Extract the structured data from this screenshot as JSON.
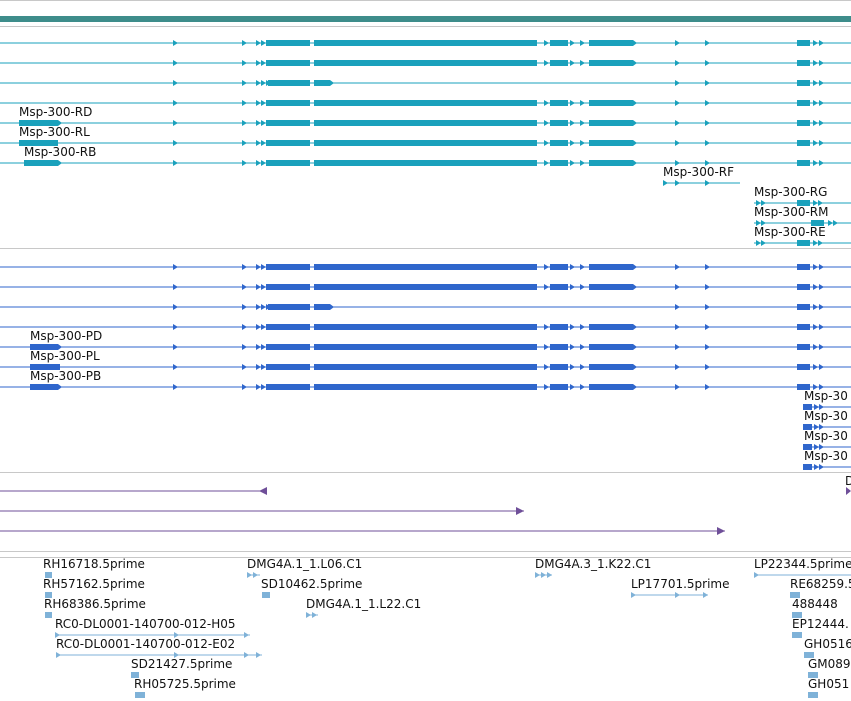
{
  "colors": {
    "rna_track": "#1aa1bc",
    "protein_track": "#2f66cc",
    "gene_span": "#6f4f99",
    "est_track": "#7fb2d8",
    "top_bar": "#3e8d8b",
    "separator": "#c8c8c8"
  },
  "rna_labels": [
    "Msp-300-RD",
    "Msp-300-RL",
    "Msp-300-RB",
    "Msp-300-RF",
    "Msp-300-RG",
    "Msp-300-RM",
    "Msp-300-RE"
  ],
  "protein_labels": [
    "Msp-300-PD",
    "Msp-300-PL",
    "Msp-300-PB",
    "Msp-30",
    "Msp-30",
    "Msp-30",
    "Msp-30"
  ],
  "gene_labels": [
    "D"
  ],
  "est_labels": [
    "RH16718.5prime",
    "RH57162.5prime",
    "RH68386.5prime",
    "RC0-DL0001-140700-012-H05",
    "RC0-DL0001-140700-012-E02",
    "SD21427.5prime",
    "RH05725.5prime",
    "DMG4A.1_1.L06.C1",
    "SD10462.5prime",
    "DMG4A.1_1.L22.C1",
    "DMG4A.3_1.K22.C1",
    "LP17701.5prime",
    "LP22344.5prime",
    "RE68259.5",
    "488448",
    "EP12444.",
    "GH0516",
    "GM089",
    "GH051"
  ]
}
